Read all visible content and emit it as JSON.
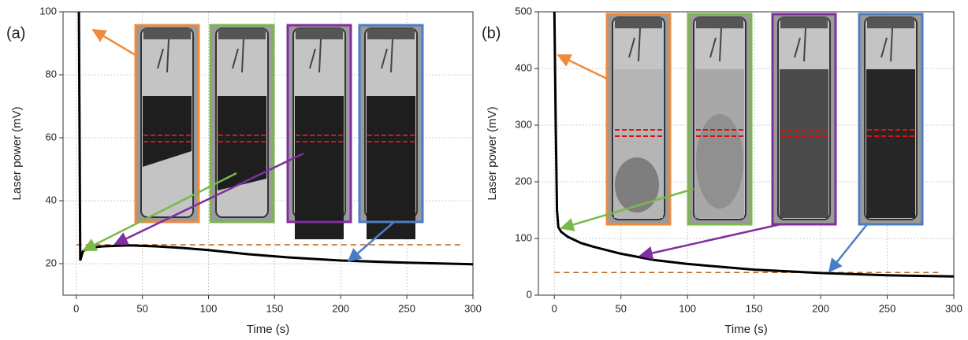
{
  "chart_data": [
    {
      "type": "line",
      "panel_label": "(a)",
      "x_label": "Time (s)",
      "y_label": "Laser power (mV)",
      "x": [
        2,
        3,
        5,
        10,
        20,
        40,
        60,
        80,
        100,
        130,
        160,
        200,
        250,
        300
      ],
      "values": [
        100,
        21,
        24,
        25,
        25.5,
        25.8,
        25.5,
        25,
        24.3,
        23,
        22,
        21,
        20.3,
        19.8
      ],
      "color": "#000000",
      "reference_line": 26,
      "reference_color": "#b5651d",
      "xlim": [
        -10,
        300
      ],
      "ylim": [
        10,
        100
      ],
      "xticks": [
        0,
        50,
        100,
        150,
        200,
        250,
        300
      ],
      "yticks": [
        20,
        40,
        60,
        80,
        100
      ],
      "grid": true
    },
    {
      "type": "line",
      "panel_label": "(b)",
      "x_label": "Time (s)",
      "y_label": "Laser power (mV)",
      "x": [
        0,
        1,
        2,
        3,
        5,
        10,
        20,
        30,
        50,
        75,
        100,
        150,
        200,
        250,
        300
      ],
      "values": [
        500,
        300,
        150,
        120,
        112,
        103,
        92,
        85,
        73,
        62,
        55,
        45,
        39,
        35,
        33
      ],
      "color": "#000000",
      "reference_line": 40,
      "reference_color": "#b5651d",
      "xlim": [
        -12,
        300
      ],
      "ylim": [
        0,
        500
      ],
      "xticks": [
        0,
        50,
        100,
        150,
        200,
        250,
        300
      ],
      "yticks": [
        0,
        100,
        200,
        300,
        400,
        500
      ],
      "grid": true
    }
  ]
}
